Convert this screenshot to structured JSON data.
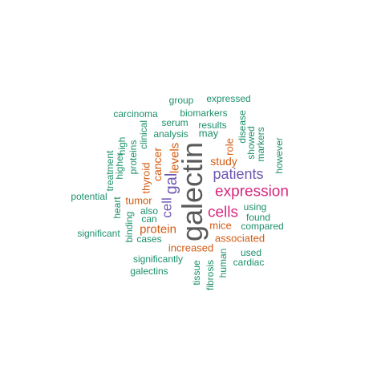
{
  "words": {
    "galectin": "galectin",
    "expression": "expression",
    "cells": "cells",
    "patients": "patients",
    "gal": "gal",
    "cell": "cell",
    "protein": "protein",
    "levels": "levels",
    "cancer": "cancer",
    "thyroid": "thyroid",
    "tumor": "tumor",
    "study": "study",
    "role": "role",
    "increased": "increased",
    "associated": "associated",
    "mice": "mice",
    "expressed": "expressed",
    "group": "group",
    "biomarkers": "biomarkers",
    "carcinoma": "carcinoma",
    "serum": "serum",
    "results": "results",
    "disease": "disease",
    "showed": "showed",
    "markers": "markers",
    "however": "however",
    "may": "may",
    "analysis": "analysis",
    "clinical": "clinical",
    "high": "high",
    "higher": "higher",
    "treatment": "treatment",
    "proteins": "proteins",
    "potential": "potential",
    "heart": "heart",
    "also": "also",
    "can": "can",
    "binding": "binding",
    "significant": "significant",
    "cases": "cases",
    "using": "using",
    "found": "found",
    "compared": "compared",
    "used": "used",
    "cardiac": "cardiac",
    "significantly": "significantly",
    "galectins": "galectins",
    "tissue": "tissue",
    "fibrosis": "fibrosis",
    "human": "human"
  }
}
